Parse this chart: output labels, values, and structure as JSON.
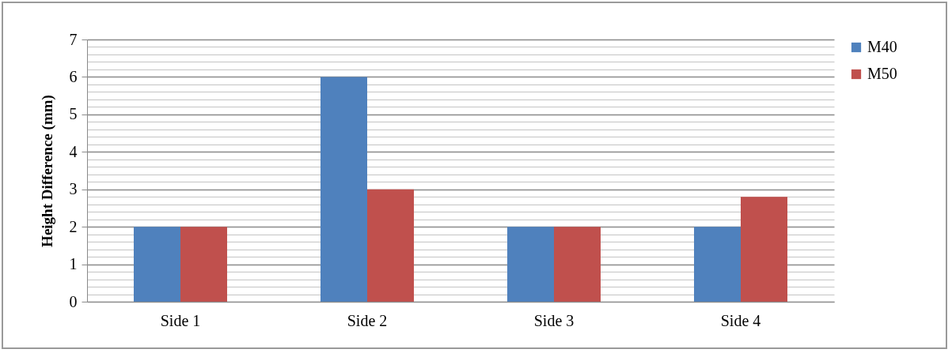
{
  "chart_data": {
    "type": "bar",
    "ylabel": "Height Difference (mm)",
    "categories": [
      "Side 1",
      "Side 2",
      "Side 3",
      "Side 4"
    ],
    "series": [
      {
        "name": "M40",
        "color": "#4f81bd",
        "values": [
          2,
          6,
          2,
          2
        ]
      },
      {
        "name": "M50",
        "color": "#c0504d",
        "values": [
          2,
          3,
          2,
          2.8
        ]
      }
    ],
    "ylim": [
      0,
      7
    ],
    "yticks": [
      0,
      {
        "value": 0.2,
        "label": null
      },
      {
        "value": 0.4,
        "label": null
      },
      {
        "value": 0.6,
        "label": null
      },
      {
        "value": 0.8,
        "label": null
      },
      1,
      {
        "value": 1.2,
        "label": null
      },
      {
        "value": 1.4,
        "label": null
      },
      {
        "value": 1.6,
        "label": null
      },
      {
        "value": 1.8,
        "label": null
      },
      2,
      {
        "value": 2.2,
        "label": null
      },
      {
        "value": 2.4,
        "label": null
      },
      {
        "value": 2.6,
        "label": null
      },
      {
        "value": 2.8,
        "label": null
      },
      3,
      {
        "value": 3.2,
        "label": null
      },
      {
        "value": 3.4,
        "label": null
      },
      {
        "value": 3.6,
        "label": null
      },
      {
        "value": 3.8,
        "label": null
      },
      4,
      {
        "value": 4.2,
        "label": null
      },
      {
        "value": 4.4,
        "label": null
      },
      {
        "value": 4.6,
        "label": null
      },
      {
        "value": 4.8,
        "label": null
      },
      5,
      {
        "value": 5.2,
        "label": null
      },
      {
        "value": 5.4,
        "label": null
      },
      {
        "value": 5.6,
        "label": null
      },
      {
        "value": 5.8,
        "label": null
      },
      6,
      {
        "value": 6.2,
        "label": null
      },
      {
        "value": 6.4,
        "label": null
      },
      {
        "value": 6.6,
        "label": null
      },
      {
        "value": 6.8,
        "label": null
      },
      7
    ],
    "grid": "y",
    "legend": "right"
  }
}
